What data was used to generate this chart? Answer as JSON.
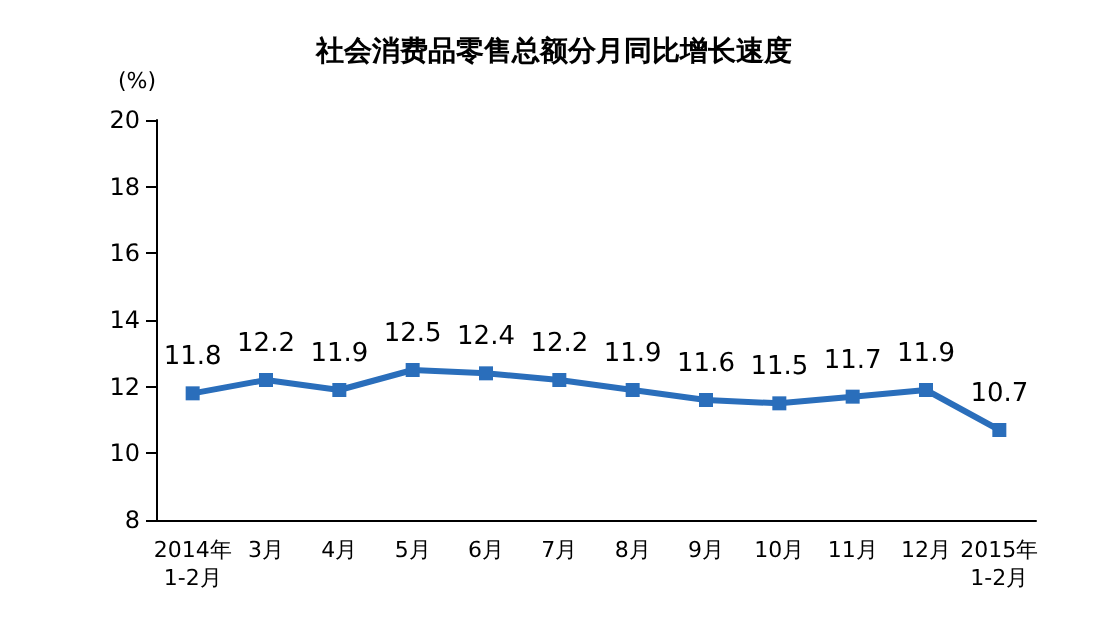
{
  "chart_data": {
    "type": "line",
    "title": "社会消费品零售总额分月同比增长速度",
    "ylabel": "(%)",
    "categories": [
      "2014年\n1-2月",
      "3月",
      "4月",
      "5月",
      "6月",
      "7月",
      "8月",
      "9月",
      "10月",
      "11月",
      "12月",
      "2015年\n1-2月"
    ],
    "series": [
      {
        "color": "#2a6ebb",
        "values": [
          11.8,
          12.2,
          11.9,
          12.5,
          12.4,
          12.2,
          11.9,
          11.6,
          11.5,
          11.7,
          11.9,
          10.7
        ]
      }
    ],
    "ylim": [
      8,
      20
    ],
    "yticks": [
      8,
      10,
      12,
      14,
      16,
      18,
      20
    ],
    "marker": "square",
    "line_style": "solid",
    "data_labels": true,
    "grid": false
  }
}
